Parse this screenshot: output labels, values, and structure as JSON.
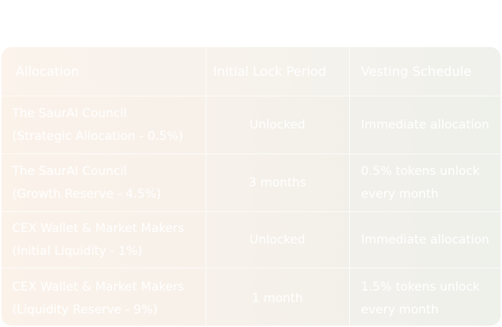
{
  "table": {
    "headers": {
      "allocation": "Allocation",
      "lock": "Initial Lock Period",
      "vesting": "Vesting Schedule"
    },
    "rows": [
      {
        "allocation_line1": "The SaurAI Council",
        "allocation_line2": "(Strategic Allocation - 0.5%)",
        "lock": "Unlocked",
        "vesting_line1": "Immediate allocation",
        "vesting_line2": ""
      },
      {
        "allocation_line1": "The SaurAI Council",
        "allocation_line2": "(Growth Reserve - 4.5%)",
        "lock": "3 months",
        "vesting_line1": "0.5% tokens unlock",
        "vesting_line2": "every month"
      },
      {
        "allocation_line1": "CEX Wallet & Market Makers",
        "allocation_line2": "(Initial Liquidity - 1%)",
        "lock": "Unlocked",
        "vesting_line1": "Immediate allocation",
        "vesting_line2": ""
      },
      {
        "allocation_line1": "CEX Wallet & Market Makers",
        "allocation_line2": "(Liquidity Reserve - 9%)",
        "lock": "1 month",
        "vesting_line1": "1.5% tokens unlock",
        "vesting_line2": "every month"
      }
    ]
  }
}
